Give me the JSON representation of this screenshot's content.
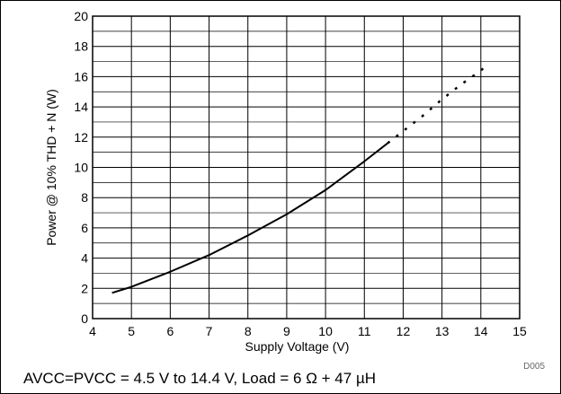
{
  "chart_data": {
    "type": "line",
    "xlabel": "Supply Voltage (V)",
    "ylabel": "Power @ 10% THD + N (W)",
    "xlim": [
      4,
      15
    ],
    "ylim": [
      0,
      20
    ],
    "xticks": [
      4,
      5,
      6,
      7,
      8,
      9,
      10,
      11,
      12,
      13,
      14,
      15
    ],
    "yticks": [
      0,
      2,
      4,
      6,
      8,
      10,
      12,
      14,
      16,
      18,
      20
    ],
    "grid": true,
    "grid_minor_y_step": 1,
    "line_color": "#000000",
    "figure_id": "D005",
    "series": [
      {
        "style": "solid",
        "x": [
          4.5,
          5,
          6,
          7,
          8,
          9,
          10,
          11,
          11.6
        ],
        "y": [
          1.7,
          2.1,
          3.1,
          4.2,
          5.5,
          6.9,
          8.5,
          10.4,
          11.6
        ]
      },
      {
        "style": "dotted",
        "x": [
          11.6,
          12,
          12.5,
          13,
          13.5,
          14,
          14.2
        ],
        "y": [
          11.6,
          12.4,
          13.4,
          14.5,
          15.5,
          16.4,
          16.9
        ]
      }
    ]
  },
  "caption": "AVCC=PVCC = 4.5 V to 14.4 V, Load = 6 Ω + 47 µH"
}
